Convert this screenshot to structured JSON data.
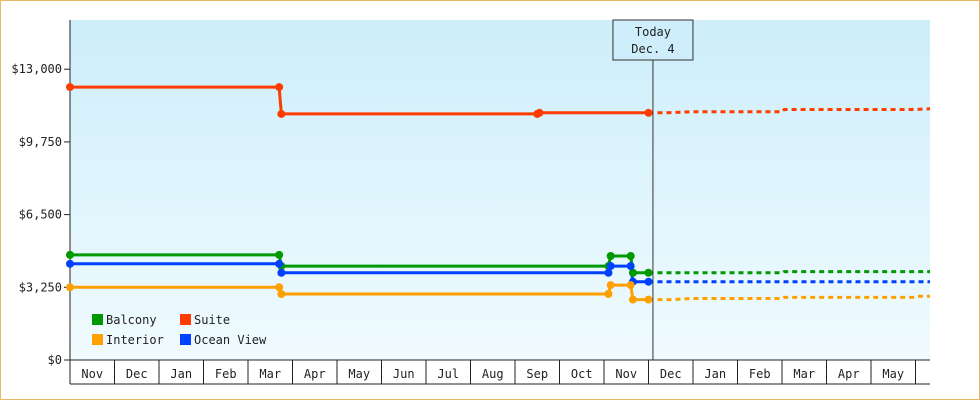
{
  "chart_data": {
    "type": "line",
    "x_axis": {
      "months": [
        "Nov",
        "Dec",
        "Jan",
        "Feb",
        "Mar",
        "Apr",
        "May",
        "Jun",
        "Jul",
        "Aug",
        "Sep",
        "Oct",
        "Nov",
        "Dec",
        "Jan",
        "Feb",
        "Mar",
        "Apr",
        "May"
      ],
      "range_months": [
        0,
        19
      ]
    },
    "y_axis": {
      "ticks": [
        0,
        3250,
        6500,
        9750,
        13000
      ],
      "tick_labels": [
        "$0",
        "$3,250",
        "$6,500",
        "$9,750",
        "$13,000"
      ],
      "ylim": [
        0,
        15200
      ]
    },
    "today": {
      "line1": "Today",
      "line2": "Dec. 4",
      "x": 13.1
    },
    "legend_position": "bottom-left",
    "colors": {
      "plot_bg_top": "#cdeefa",
      "plot_bg_bottom": "#f0fbff",
      "frame_border": "#e8b866"
    },
    "series": [
      {
        "name": "Suite",
        "color": "#ff3c00",
        "points": [
          [
            0,
            12200
          ],
          [
            4.7,
            12200
          ],
          [
            4.75,
            11000
          ],
          [
            10.5,
            11000
          ],
          [
            10.55,
            11050
          ],
          [
            12.6,
            11050
          ],
          [
            13.0,
            11050
          ]
        ],
        "forecast": [
          [
            13.0,
            11050
          ],
          [
            13.4,
            11050
          ],
          [
            14.0,
            11100
          ],
          [
            16.0,
            11100
          ],
          [
            16.05,
            11200
          ],
          [
            19.0,
            11200
          ],
          [
            19.5,
            11250
          ],
          [
            21.0,
            11250
          ]
        ]
      },
      {
        "name": "Balcony",
        "color": "#009900",
        "points": [
          [
            0,
            4700
          ],
          [
            4.7,
            4700
          ],
          [
            4.75,
            4200
          ],
          [
            12.1,
            4200
          ],
          [
            12.15,
            4650
          ],
          [
            12.6,
            4650
          ],
          [
            12.65,
            3900
          ],
          [
            13.0,
            3900
          ]
        ],
        "forecast": [
          [
            13.0,
            3900
          ],
          [
            14.0,
            3900
          ],
          [
            16.0,
            3900
          ],
          [
            16.05,
            3950
          ],
          [
            21.0,
            3950
          ]
        ]
      },
      {
        "name": "Ocean View",
        "color": "#0040ff",
        "points": [
          [
            0,
            4300
          ],
          [
            4.7,
            4300
          ],
          [
            4.75,
            3900
          ],
          [
            12.1,
            3900
          ],
          [
            12.15,
            4200
          ],
          [
            12.6,
            4200
          ],
          [
            12.65,
            3500
          ],
          [
            13.0,
            3500
          ]
        ],
        "forecast": [
          [
            13.0,
            3500
          ],
          [
            21.0,
            3500
          ]
        ]
      },
      {
        "name": "Interior",
        "color": "#ff9f00",
        "points": [
          [
            0,
            3250
          ],
          [
            4.7,
            3250
          ],
          [
            4.75,
            2950
          ],
          [
            12.1,
            2950
          ],
          [
            12.15,
            3350
          ],
          [
            12.6,
            3350
          ],
          [
            12.65,
            2700
          ],
          [
            13.0,
            2700
          ]
        ],
        "forecast": [
          [
            13.0,
            2700
          ],
          [
            13.5,
            2700
          ],
          [
            14.0,
            2750
          ],
          [
            16.0,
            2750
          ],
          [
            16.05,
            2800
          ],
          [
            19.0,
            2800
          ],
          [
            19.05,
            2850
          ],
          [
            21.0,
            2850
          ]
        ]
      }
    ],
    "legend": [
      {
        "label": "Balcony",
        "color": "#009900"
      },
      {
        "label": "Suite",
        "color": "#ff3c00"
      },
      {
        "label": "Interior",
        "color": "#ff9f00"
      },
      {
        "label": "Ocean View",
        "color": "#0040ff"
      }
    ]
  }
}
